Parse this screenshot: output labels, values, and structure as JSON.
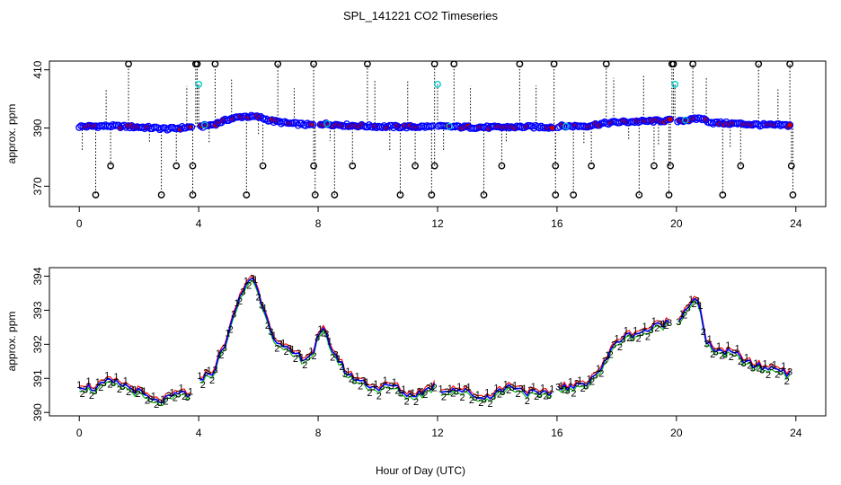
{
  "title": "SPL_141221  CO2 Timeseries",
  "xlabel": "Hour of Day (UTC)",
  "colors": {
    "series_primary": "#0000ff",
    "series_fill": "#cc0000",
    "spike": "#000000",
    "special": "#00cccc",
    "label_1": "#ff0000",
    "label_2": "#00bb00",
    "label_3": "#0000ff",
    "axis": "#000000"
  },
  "chart_data": [
    {
      "type": "scatter",
      "ylabel": "approx. ppm",
      "xlim": [
        -1,
        25
      ],
      "ylim": [
        363,
        413
      ],
      "x_ticks": [
        0,
        4,
        8,
        12,
        16,
        20,
        24
      ],
      "y_ticks": [
        370,
        390,
        410
      ],
      "baseline_knots": {
        "x": [
          0,
          1,
          2,
          3,
          3.7,
          4,
          4.5,
          5,
          5.5,
          6,
          6.5,
          7,
          7.8,
          8,
          9,
          10,
          11,
          12,
          13,
          14,
          15,
          15.9,
          16,
          17,
          17.5,
          18,
          19,
          19.8,
          20,
          20.5,
          20.8,
          21.2,
          22,
          23,
          23.8
        ],
        "y": [
          390.5,
          390.7,
          390.3,
          389.7,
          390.3,
          390.4,
          391.2,
          393,
          394,
          393.8,
          392.3,
          391.6,
          391,
          391.5,
          390.9,
          390.5,
          390.4,
          390.5,
          390.3,
          390.2,
          390.4,
          390.3,
          390.6,
          390.7,
          391.5,
          392,
          392.3,
          392.6,
          392.5,
          392.8,
          393.4,
          391.8,
          391.5,
          391,
          390.9
        ]
      },
      "spikes": {
        "top_value": 412,
        "top_x": [
          1.65,
          3.9,
          3.95,
          4.55,
          6.65,
          7.85,
          9.65,
          11.9,
          12.55,
          14.75,
          15.9,
          17.65,
          19.85,
          19.9,
          20.55,
          22.75,
          23.8
        ],
        "high_value": 377,
        "high_x": [
          1.05,
          3.25,
          3.8,
          6.15,
          7.85,
          9.15,
          11.25,
          11.9,
          14.15,
          15.95,
          17.15,
          19.25,
          19.8,
          22.15,
          23.85
        ],
        "low_value": 367,
        "low_x": [
          0.55,
          2.75,
          3.8,
          5.6,
          7.9,
          8.55,
          10.75,
          11.8,
          13.55,
          15.95,
          16.55,
          18.75,
          19.75,
          21.55,
          23.9
        ],
        "special_value": 405,
        "special_x": [
          4.0,
          12.0,
          19.95
        ]
      }
    },
    {
      "type": "line",
      "ylabel": "approx. ppm",
      "xlim": [
        -1,
        25
      ],
      "ylim": [
        389.9,
        394.25
      ],
      "x_ticks": [
        0,
        4,
        8,
        12,
        16,
        20,
        24
      ],
      "y_ticks": [
        390,
        391,
        392,
        393,
        394
      ],
      "series_markers": [
        "1",
        "2",
        "3"
      ],
      "knots": {
        "x": [
          0,
          0.5,
          1.0,
          1.5,
          2.0,
          2.5,
          3.0,
          3.5,
          3.8,
          4.0,
          4.5,
          5.0,
          5.3,
          5.6,
          5.8,
          6.0,
          6.3,
          6.6,
          7.0,
          7.5,
          7.8,
          8.0,
          8.2,
          8.5,
          9.0,
          9.5,
          10.0,
          10.5,
          11.0,
          11.5,
          11.9,
          12.0,
          12.5,
          13.0,
          13.5,
          14.0,
          14.5,
          15.0,
          15.5,
          15.9,
          16.0,
          16.5,
          17.0,
          17.5,
          18.0,
          18.5,
          19.0,
          19.5,
          20.0,
          20.3,
          20.6,
          20.8,
          21.0,
          21.2,
          21.5,
          22.0,
          22.5,
          23.0,
          23.5,
          23.8
        ],
        "y": [
          390.8,
          390.7,
          390.9,
          390.8,
          390.6,
          390.3,
          390.4,
          390.6,
          390.4,
          391.0,
          391.2,
          392.3,
          393.2,
          393.8,
          394.0,
          393.5,
          392.8,
          392.0,
          391.8,
          391.6,
          391.7,
          392.2,
          392.4,
          391.8,
          391.1,
          390.9,
          390.7,
          390.8,
          390.5,
          390.6,
          390.8,
          390.6,
          390.7,
          390.6,
          390.4,
          390.6,
          390.8,
          390.6,
          390.5,
          390.6,
          390.8,
          390.7,
          390.9,
          391.3,
          392.1,
          392.3,
          392.4,
          392.6,
          392.7,
          393.0,
          393.4,
          393.0,
          392.0,
          391.9,
          391.8,
          391.7,
          391.4,
          391.3,
          391.3,
          391.1
        ]
      }
    }
  ]
}
